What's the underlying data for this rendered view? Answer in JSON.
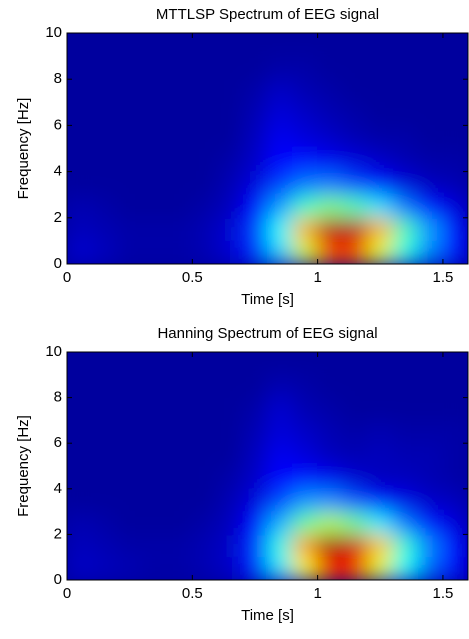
{
  "chart_data": [
    {
      "type": "heatmap",
      "title": "MTTLSP Spectrum of EEG signal",
      "xlabel": "Time [s]",
      "ylabel": "Frequency [Hz]",
      "xlim": [
        0,
        1.6
      ],
      "ylim": [
        0,
        10
      ],
      "xticks": [
        0,
        0.5,
        1,
        1.5
      ],
      "yticks": [
        0,
        2,
        4,
        6,
        8,
        10
      ],
      "colormap": "jet",
      "x": [
        0.05,
        0.15,
        0.25,
        0.35,
        0.45,
        0.55,
        0.65,
        0.75,
        0.85,
        0.95,
        1.05,
        1.15,
        1.25,
        1.35,
        1.45,
        1.55
      ],
      "y": [
        0.5,
        1.5,
        2.5,
        3.5,
        4.5,
        5.5,
        6.5,
        7.5,
        8.5,
        9.5
      ],
      "z": [
        [
          0.08,
          0.06,
          0.04,
          0.04,
          0.04,
          0.05,
          0.08,
          0.16,
          0.33,
          0.58,
          0.8,
          0.8,
          0.6,
          0.4,
          0.25,
          0.14
        ],
        [
          0.06,
          0.05,
          0.04,
          0.04,
          0.04,
          0.05,
          0.08,
          0.18,
          0.38,
          0.7,
          0.95,
          0.95,
          0.7,
          0.45,
          0.28,
          0.14
        ],
        [
          0.05,
          0.04,
          0.03,
          0.03,
          0.03,
          0.04,
          0.06,
          0.13,
          0.28,
          0.43,
          0.5,
          0.45,
          0.35,
          0.24,
          0.14,
          0.09
        ],
        [
          0.03,
          0.03,
          0.03,
          0.03,
          0.03,
          0.03,
          0.05,
          0.09,
          0.18,
          0.24,
          0.24,
          0.19,
          0.14,
          0.09,
          0.06,
          0.05
        ],
        [
          0.03,
          0.03,
          0.03,
          0.03,
          0.03,
          0.03,
          0.04,
          0.07,
          0.13,
          0.14,
          0.11,
          0.09,
          0.07,
          0.05,
          0.04,
          0.04
        ],
        [
          0.03,
          0.03,
          0.03,
          0.03,
          0.03,
          0.03,
          0.03,
          0.06,
          0.11,
          0.09,
          0.07,
          0.05,
          0.04,
          0.04,
          0.03,
          0.03
        ],
        [
          0.03,
          0.03,
          0.03,
          0.03,
          0.03,
          0.03,
          0.03,
          0.05,
          0.09,
          0.07,
          0.05,
          0.04,
          0.03,
          0.03,
          0.03,
          0.03
        ],
        [
          0.03,
          0.03,
          0.03,
          0.03,
          0.03,
          0.03,
          0.03,
          0.04,
          0.07,
          0.05,
          0.04,
          0.03,
          0.03,
          0.03,
          0.03,
          0.03
        ],
        [
          0.03,
          0.03,
          0.03,
          0.03,
          0.03,
          0.03,
          0.03,
          0.03,
          0.04,
          0.04,
          0.03,
          0.03,
          0.03,
          0.03,
          0.03,
          0.03
        ],
        [
          0.03,
          0.03,
          0.03,
          0.03,
          0.03,
          0.03,
          0.03,
          0.03,
          0.03,
          0.03,
          0.03,
          0.03,
          0.03,
          0.03,
          0.03,
          0.03
        ]
      ]
    },
    {
      "type": "heatmap",
      "title": "Hanning Spectrum of EEG signal",
      "xlabel": "Time [s]",
      "ylabel": "Frequency [Hz]",
      "xlim": [
        0,
        1.6
      ],
      "ylim": [
        0,
        10
      ],
      "xticks": [
        0,
        0.5,
        1,
        1.5
      ],
      "yticks": [
        0,
        2,
        4,
        6,
        8,
        10
      ],
      "colormap": "jet",
      "x": [
        0.05,
        0.15,
        0.25,
        0.35,
        0.45,
        0.55,
        0.65,
        0.75,
        0.85,
        0.95,
        1.05,
        1.15,
        1.25,
        1.35,
        1.45,
        1.55
      ],
      "y": [
        0.5,
        1.5,
        2.5,
        3.5,
        4.5,
        5.5,
        6.5,
        7.5,
        8.5,
        9.5
      ],
      "z": [
        [
          0.07,
          0.06,
          0.05,
          0.04,
          0.04,
          0.05,
          0.07,
          0.15,
          0.35,
          0.62,
          0.85,
          0.82,
          0.6,
          0.38,
          0.22,
          0.12
        ],
        [
          0.06,
          0.05,
          0.04,
          0.04,
          0.04,
          0.05,
          0.07,
          0.17,
          0.4,
          0.72,
          0.97,
          0.93,
          0.68,
          0.42,
          0.25,
          0.13
        ],
        [
          0.05,
          0.04,
          0.03,
          0.03,
          0.03,
          0.04,
          0.06,
          0.13,
          0.3,
          0.47,
          0.55,
          0.48,
          0.36,
          0.24,
          0.14,
          0.09
        ],
        [
          0.03,
          0.03,
          0.03,
          0.03,
          0.03,
          0.03,
          0.05,
          0.09,
          0.19,
          0.27,
          0.26,
          0.2,
          0.14,
          0.1,
          0.07,
          0.06
        ],
        [
          0.03,
          0.03,
          0.03,
          0.03,
          0.03,
          0.03,
          0.04,
          0.07,
          0.13,
          0.14,
          0.11,
          0.08,
          0.06,
          0.06,
          0.05,
          0.04
        ],
        [
          0.03,
          0.03,
          0.03,
          0.03,
          0.03,
          0.03,
          0.03,
          0.06,
          0.11,
          0.09,
          0.06,
          0.05,
          0.06,
          0.05,
          0.05,
          0.04
        ],
        [
          0.03,
          0.03,
          0.03,
          0.03,
          0.03,
          0.03,
          0.03,
          0.05,
          0.09,
          0.07,
          0.05,
          0.04,
          0.05,
          0.04,
          0.04,
          0.04
        ],
        [
          0.03,
          0.03,
          0.03,
          0.03,
          0.03,
          0.03,
          0.03,
          0.04,
          0.08,
          0.05,
          0.04,
          0.03,
          0.03,
          0.03,
          0.03,
          0.03
        ],
        [
          0.03,
          0.03,
          0.03,
          0.03,
          0.03,
          0.03,
          0.03,
          0.03,
          0.05,
          0.04,
          0.03,
          0.03,
          0.03,
          0.03,
          0.03,
          0.03
        ],
        [
          0.03,
          0.03,
          0.03,
          0.03,
          0.03,
          0.03,
          0.03,
          0.03,
          0.03,
          0.03,
          0.03,
          0.03,
          0.03,
          0.03,
          0.03,
          0.03
        ]
      ]
    }
  ]
}
